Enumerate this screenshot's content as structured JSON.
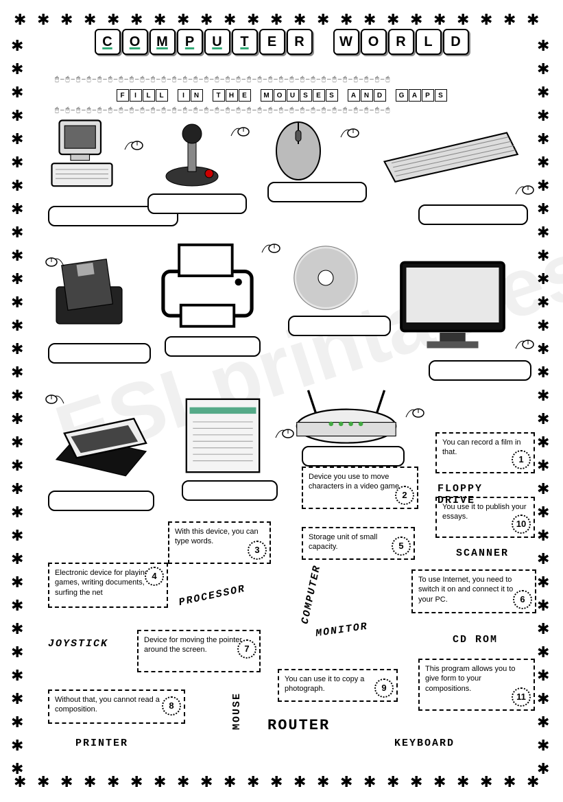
{
  "title_words": [
    "COMPUTER",
    "WORLD"
  ],
  "subtitle_words": [
    "FILL",
    "IN",
    "THE",
    "MOUSES",
    "AND",
    "GAPS"
  ],
  "watermark": "ESLprintables.com",
  "definitions": [
    {
      "n": "1",
      "text": "You can record a film in that."
    },
    {
      "n": "2",
      "text": "Device you use to move characters in a video game."
    },
    {
      "n": "3",
      "text": "With this device, you can type words."
    },
    {
      "n": "4",
      "text": "Electronic device for playing games, writing documents, surfing the net"
    },
    {
      "n": "5",
      "text": "Storage unit of small capacity."
    },
    {
      "n": "6",
      "text": "To use Internet, you need to switch it on and connect it to your PC."
    },
    {
      "n": "7",
      "text": "Device for moving the pointer around the screen."
    },
    {
      "n": "8",
      "text": "Without that, you cannot read a composition."
    },
    {
      "n": "9",
      "text": "You can use it to copy a photograph."
    },
    {
      "n": "10",
      "text": "You use it to publish your essays."
    },
    {
      "n": "11",
      "text": "This program allows you to give form to your compositions."
    }
  ],
  "wordbank": [
    "FLOPPY DRIVE",
    "SCANNER",
    "PROCESSOR",
    "COMPUTER",
    "MONITOR",
    "JOYSTICK",
    "CD ROM",
    "MOUSE",
    "ROUTER",
    "PRINTER",
    "KEYBOARD"
  ],
  "colors": {
    "border": "#000000",
    "bg": "#ffffff"
  }
}
